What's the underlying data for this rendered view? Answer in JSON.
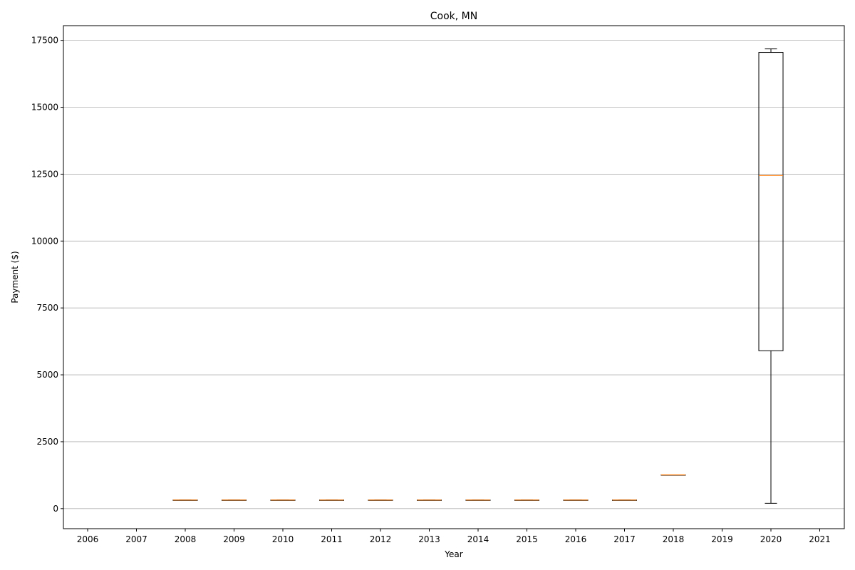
{
  "chart_data": {
    "type": "box",
    "title": "Cook, MN",
    "xlabel": "Year",
    "ylabel": "Payment ($)",
    "categories": [
      "2006",
      "2007",
      "2008",
      "2009",
      "2010",
      "2011",
      "2012",
      "2013",
      "2014",
      "2015",
      "2016",
      "2017",
      "2018",
      "2019",
      "2020",
      "2021"
    ],
    "ylim": [
      -750,
      18050
    ],
    "yticks": [
      0,
      2500,
      5000,
      7500,
      10000,
      12500,
      15000,
      17500
    ],
    "grid": {
      "y": true,
      "x": false
    },
    "colors": {
      "box": "#000000",
      "median": "#ff7f0e",
      "grid": "#b0b0b0"
    },
    "boxes": [
      {
        "category": "2008",
        "min": 320,
        "q1": 320,
        "median": 320,
        "q3": 320,
        "max": 320
      },
      {
        "category": "2009",
        "min": 320,
        "q1": 320,
        "median": 320,
        "q3": 320,
        "max": 320
      },
      {
        "category": "2010",
        "min": 320,
        "q1": 320,
        "median": 320,
        "q3": 320,
        "max": 320
      },
      {
        "category": "2011",
        "min": 320,
        "q1": 320,
        "median": 320,
        "q3": 320,
        "max": 320
      },
      {
        "category": "2012",
        "min": 320,
        "q1": 320,
        "median": 320,
        "q3": 320,
        "max": 320
      },
      {
        "category": "2013",
        "min": 320,
        "q1": 320,
        "median": 320,
        "q3": 320,
        "max": 320
      },
      {
        "category": "2014",
        "min": 320,
        "q1": 320,
        "median": 320,
        "q3": 320,
        "max": 320
      },
      {
        "category": "2015",
        "min": 320,
        "q1": 320,
        "median": 320,
        "q3": 320,
        "max": 320
      },
      {
        "category": "2016",
        "min": 320,
        "q1": 320,
        "median": 320,
        "q3": 320,
        "max": 320
      },
      {
        "category": "2017",
        "min": 320,
        "q1": 320,
        "median": 320,
        "q3": 320,
        "max": 320
      },
      {
        "category": "2018",
        "min": 1260,
        "q1": 1260,
        "median": 1260,
        "q3": 1260,
        "max": 1260
      },
      {
        "category": "2020",
        "min": 200,
        "q1": 5900,
        "median": 12450,
        "q3": 17050,
        "max": 17180
      }
    ]
  }
}
